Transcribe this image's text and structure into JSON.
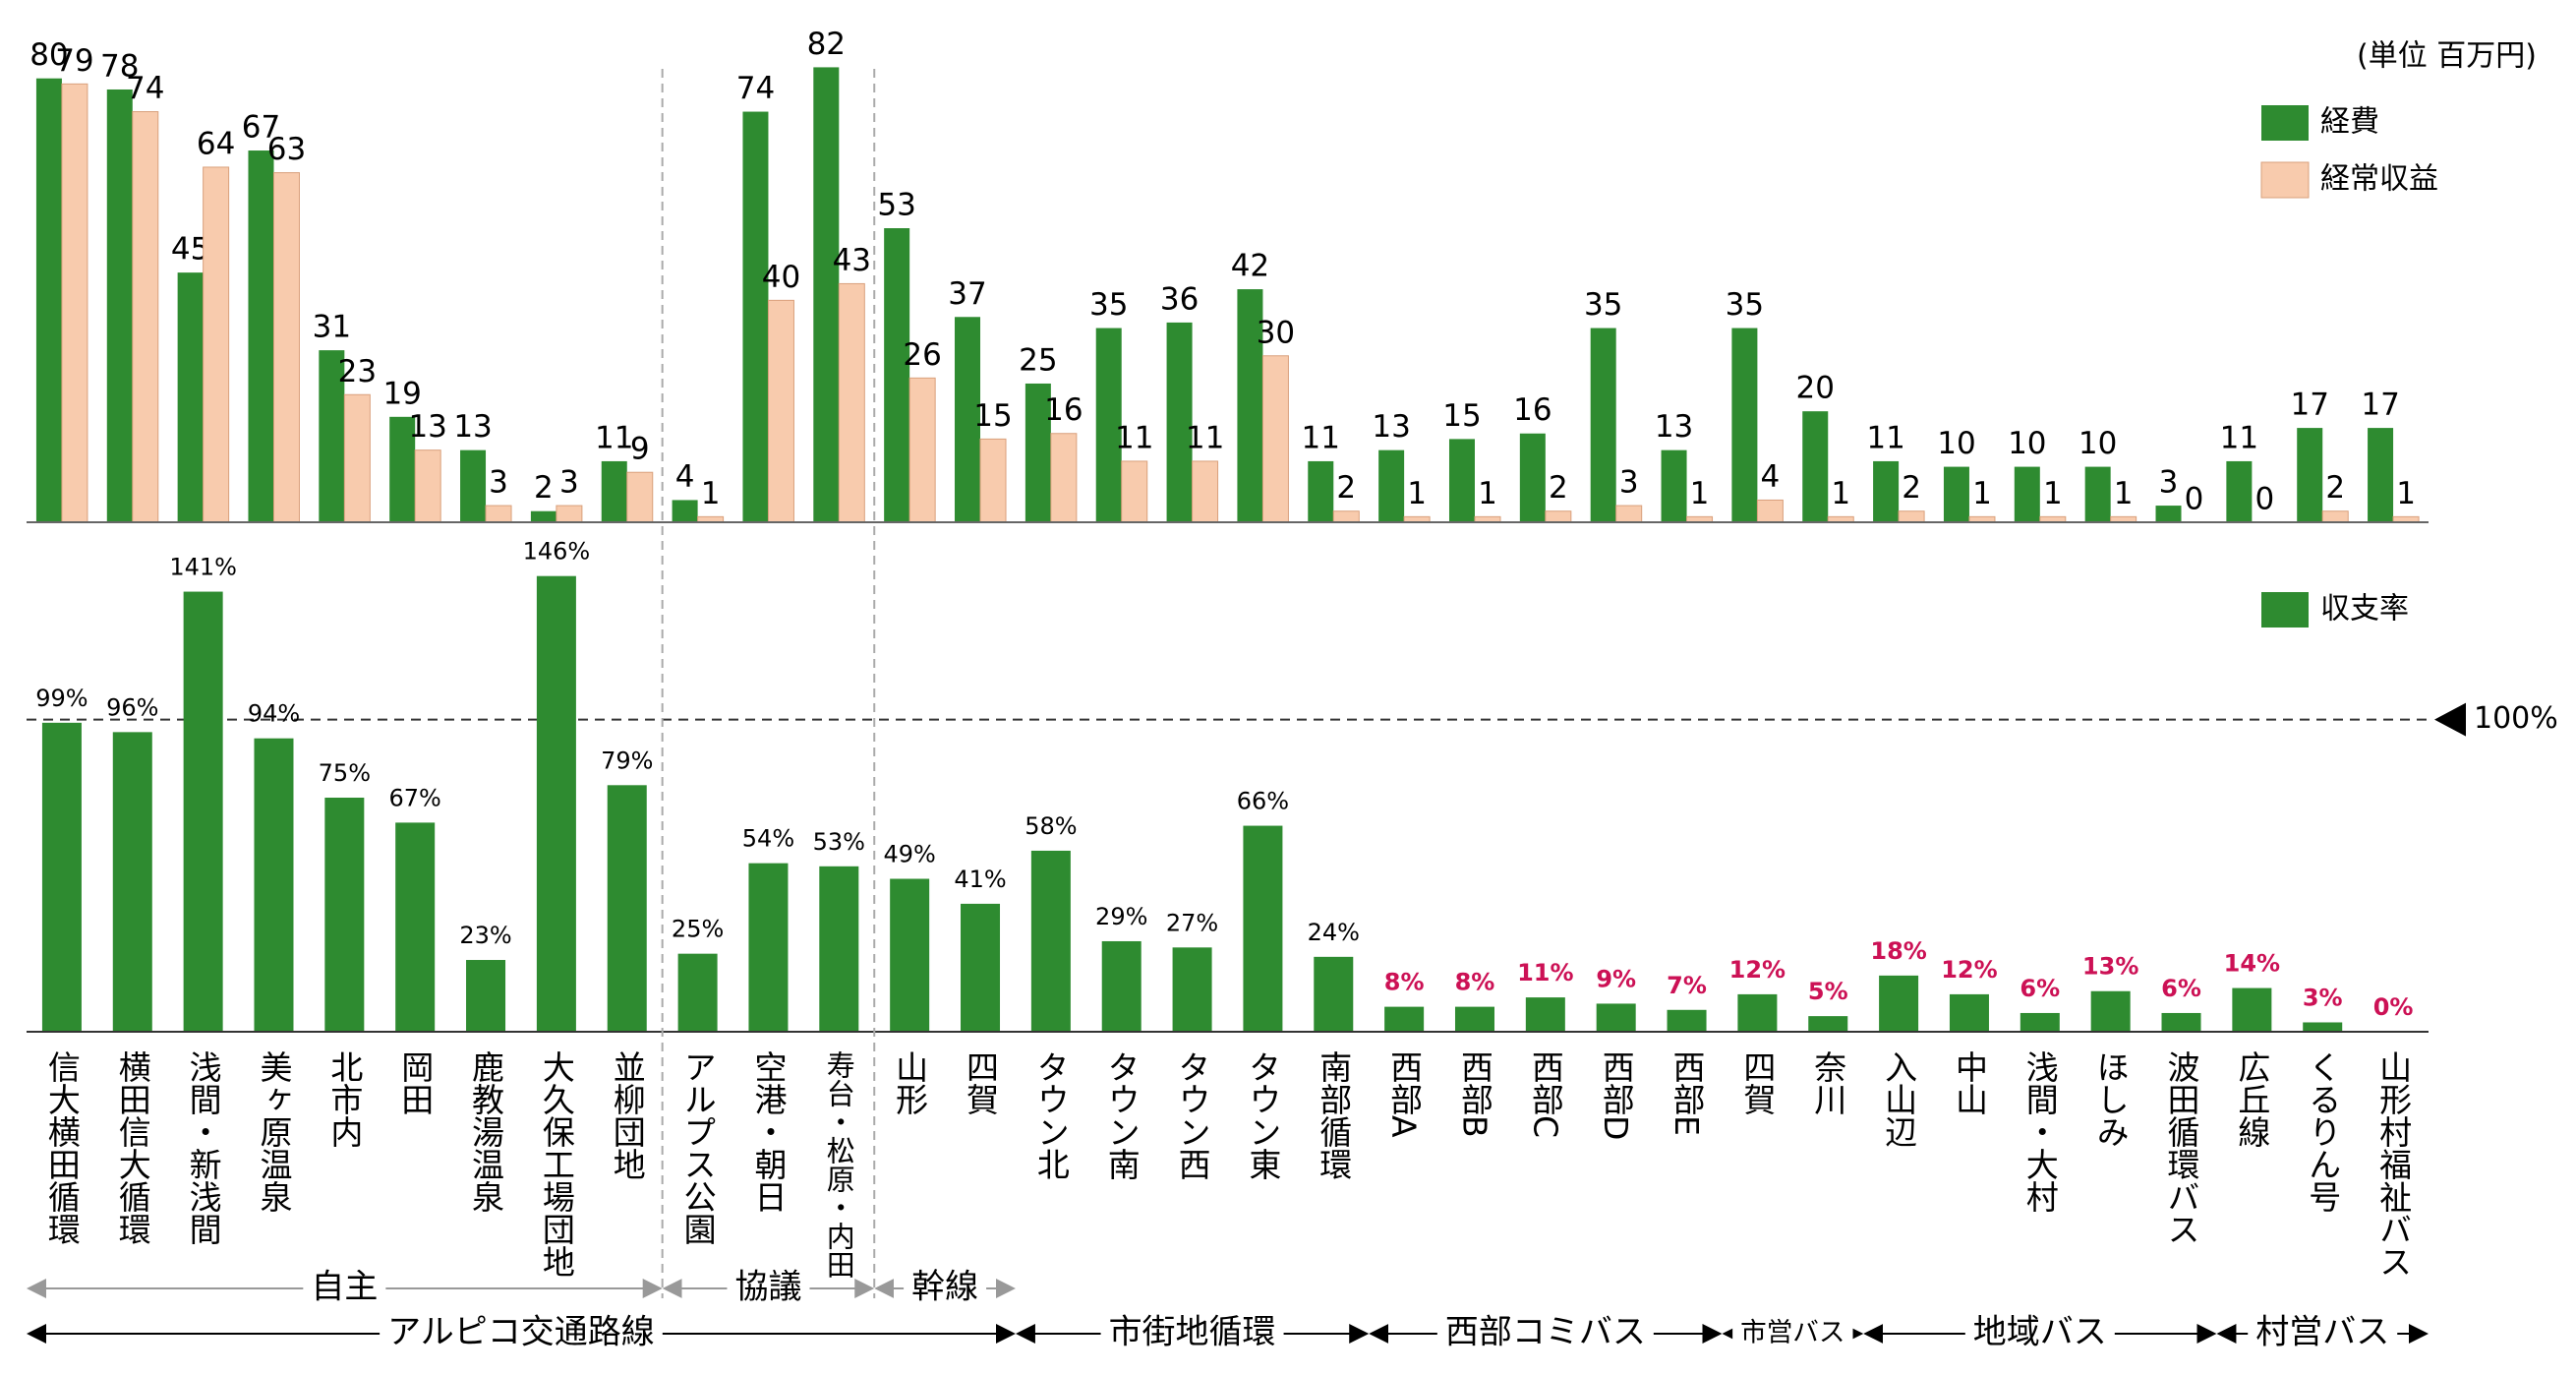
{
  "chart_data": [
    {
      "type": "bar",
      "unit_note": "(単位 百万円)",
      "ylim": [
        0,
        92
      ],
      "series": [
        {
          "name": "経費",
          "color": "#2e8b30",
          "values": [
            80,
            78,
            45,
            67,
            31,
            19,
            13,
            2,
            11,
            4,
            74,
            82,
            53,
            37,
            25,
            35,
            36,
            42,
            11,
            13,
            15,
            16,
            35,
            13,
            35,
            20,
            11,
            10,
            10,
            10,
            3,
            11,
            17,
            17
          ]
        },
        {
          "name": "経常収益",
          "color": "#f8cbad",
          "values": [
            79,
            74,
            64,
            63,
            23,
            13,
            3,
            3,
            9,
            1,
            40,
            43,
            26,
            15,
            16,
            11,
            11,
            30,
            2,
            1,
            1,
            2,
            3,
            1,
            4,
            1,
            2,
            1,
            1,
            1,
            0,
            0,
            2,
            1
          ]
        }
      ]
    },
    {
      "type": "bar",
      "ylim": [
        0,
        150
      ],
      "categories": [
        "信大横田循環",
        "横田信大循環",
        "浅間・新浅間",
        "美ヶ原温泉",
        "北市内",
        "岡田",
        "鹿教湯温泉",
        "大久保工場団地",
        "並柳団地",
        "アルプス公園",
        "空港・朝日",
        "寿台・松原・内田",
        "山形",
        "四賀",
        "タウン北",
        "タウン南",
        "タウン西",
        "タウン東",
        "南部循環",
        "西部A",
        "西部B",
        "西部C",
        "西部D",
        "西部E",
        "四賀",
        "奈川",
        "入山辺",
        "中山",
        "浅間・大村",
        "ほしみ",
        "波田循環バス",
        "広丘線",
        "くるりん号",
        "山形村福祉バス"
      ],
      "series": [
        {
          "name": "収支率",
          "color": "#2e8b30",
          "values": [
            99,
            96,
            141,
            94,
            75,
            67,
            23,
            146,
            79,
            25,
            54,
            53,
            49,
            41,
            58,
            29,
            27,
            66,
            24,
            8,
            8,
            11,
            9,
            7,
            12,
            5,
            18,
            12,
            6,
            13,
            6,
            14,
            3,
            0
          ],
          "value_labels": [
            "99%",
            "96%",
            "141%",
            "94%",
            "75%",
            "67%",
            "23%",
            "146%",
            "79%",
            "25%",
            "54%",
            "53%",
            "49%",
            "41%",
            "58%",
            "29%",
            "27%",
            "66%",
            "24%",
            "8%",
            "8%",
            "11%",
            "9%",
            "7%",
            "12%",
            "5%",
            "18%",
            "12%",
            "6%",
            "13%",
            "6%",
            "14%",
            "3%",
            "0%"
          ],
          "value_label_colors": [
            "#000000",
            "#000000",
            "#000000",
            "#000000",
            "#000000",
            "#000000",
            "#000000",
            "#000000",
            "#000000",
            "#000000",
            "#000000",
            "#000000",
            "#000000",
            "#000000",
            "#000000",
            "#000000",
            "#000000",
            "#000000",
            "#000000",
            "#cc1155",
            "#cc1155",
            "#cc1155",
            "#cc1155",
            "#cc1155",
            "#cc1155",
            "#cc1155",
            "#cc1155",
            "#cc1155",
            "#cc1155",
            "#cc1155",
            "#cc1155",
            "#cc1155",
            "#cc1155",
            "#cc1155"
          ]
        }
      ],
      "ref_line": {
        "value": 100,
        "label": "100%"
      },
      "groups": [
        [
          {
            "label": "自主",
            "span": [
              0,
              8
            ]
          },
          {
            "label": "協議",
            "span": [
              9,
              11
            ]
          },
          {
            "label": "幹線",
            "span": [
              12,
              13
            ]
          }
        ],
        [
          {
            "label": "アルピコ交通路線",
            "span": [
              0,
              13
            ]
          },
          {
            "label": "市街地循環",
            "span": [
              14,
              18
            ]
          },
          {
            "label": "西部コミバス",
            "span": [
              19,
              23
            ]
          },
          {
            "label": "市営バス",
            "span": [
              24,
              25
            ]
          },
          {
            "label": "地域バス",
            "span": [
              26,
              30
            ]
          },
          {
            "label": "村営バス",
            "span": [
              31,
              33
            ]
          }
        ]
      ]
    }
  ]
}
